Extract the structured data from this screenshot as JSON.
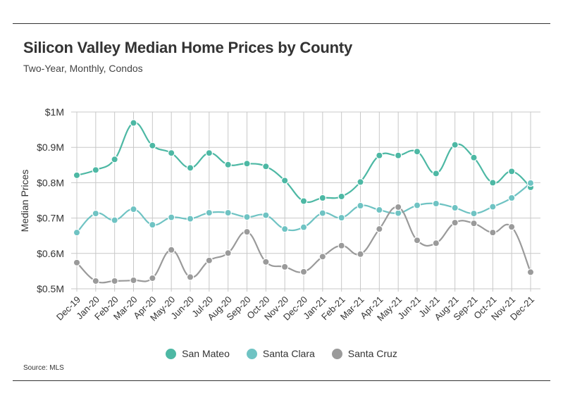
{
  "title": "Silicon Valley Median Home Prices by County",
  "subtitle": "Two-Year, Monthly, Condos",
  "source": "Source:  MLS",
  "chart_data": {
    "type": "line",
    "title": "Silicon Valley Median Home Prices by County",
    "subtitle": "Two-Year, Monthly, Condos",
    "xlabel": "",
    "ylabel": "Median Prices",
    "ylim": [
      0.5,
      1.0
    ],
    "yticks": [
      0.5,
      0.6,
      0.7,
      0.8,
      0.9,
      1.0
    ],
    "ytick_labels": [
      "$0.5M",
      "$0.6M",
      "$0.7M",
      "$0.8M",
      "$0.9M",
      "$1M"
    ],
    "grid": "vertical and horizontal",
    "legend_position": "bottom",
    "categories": [
      "Dec-19",
      "Jan-20",
      "Feb-20",
      "Mar-20",
      "Apr-20",
      "May-20",
      "Jun-20",
      "Jul-20",
      "Aug-20",
      "Sep-20",
      "Oct-20",
      "Nov-20",
      "Dec-20",
      "Jan-21",
      "Feb-21",
      "Mar-21",
      "Apr-21",
      "May-21",
      "Jun-21",
      "Jul-21",
      "Aug-21",
      "Sep-21",
      "Oct-21",
      "Nov-21",
      "Dec-21"
    ],
    "series": [
      {
        "name": "San Mateo",
        "color": "#4db8a4",
        "values": [
          0.821,
          0.836,
          0.866,
          0.969,
          0.905,
          0.884,
          0.842,
          0.884,
          0.851,
          0.854,
          0.846,
          0.806,
          0.748,
          0.757,
          0.761,
          0.802,
          0.877,
          0.877,
          0.888,
          0.826,
          0.907,
          0.871,
          0.8,
          0.832,
          0.787
        ]
      },
      {
        "name": "Santa Clara",
        "color": "#6fc3c3",
        "values": [
          0.659,
          0.713,
          0.694,
          0.725,
          0.681,
          0.702,
          0.698,
          0.715,
          0.715,
          0.703,
          0.708,
          0.669,
          0.674,
          0.714,
          0.701,
          0.735,
          0.723,
          0.714,
          0.736,
          0.741,
          0.729,
          0.713,
          0.732,
          0.757,
          0.799
        ]
      },
      {
        "name": "Santa Cruz",
        "color": "#9a9a9a",
        "values": [
          0.574,
          0.522,
          0.522,
          0.524,
          0.53,
          0.61,
          0.533,
          0.58,
          0.601,
          0.661,
          0.576,
          0.562,
          0.548,
          0.591,
          0.622,
          0.598,
          0.669,
          0.731,
          0.637,
          0.629,
          0.687,
          0.685,
          0.659,
          0.675,
          0.547
        ]
      }
    ]
  }
}
